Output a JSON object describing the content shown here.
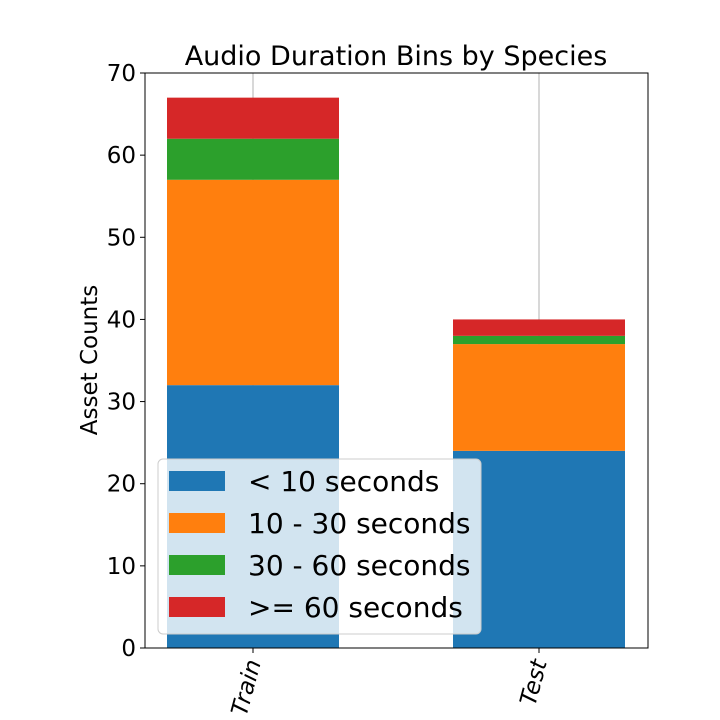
{
  "chart_data": {
    "type": "bar",
    "stacked": true,
    "title": "Audio Duration Bins by Species",
    "xlabel": "",
    "ylabel": "Asset Counts",
    "categories": [
      "Train",
      "Test"
    ],
    "ylim": [
      0,
      70
    ],
    "yticks": [
      0,
      10,
      20,
      30,
      40,
      50,
      60,
      70
    ],
    "grid": "vertical",
    "legend_position": "bottom-left",
    "series": [
      {
        "name": "< 10 seconds",
        "values": [
          32,
          24
        ],
        "color": "#1f77b4"
      },
      {
        "name": "10 - 30 seconds",
        "values": [
          25,
          13
        ],
        "color": "#ff7f0e"
      },
      {
        "name": "30 - 60 seconds",
        "values": [
          5,
          1
        ],
        "color": "#2ca02c"
      },
      {
        "name": ">= 60 seconds",
        "values": [
          5,
          2
        ],
        "color": "#d62728"
      }
    ]
  }
}
